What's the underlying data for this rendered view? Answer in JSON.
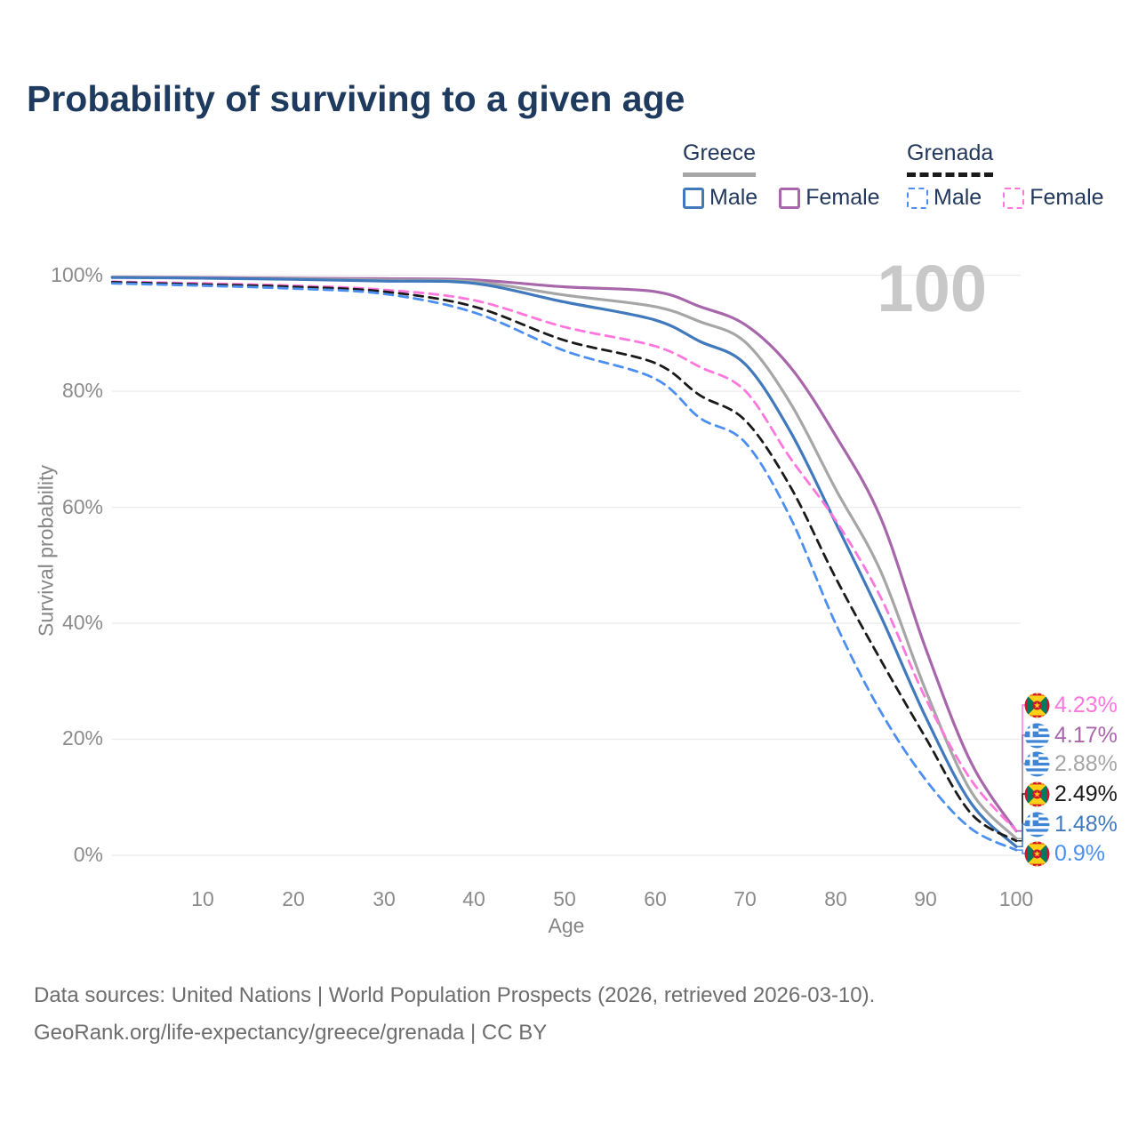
{
  "title": "Probability of surviving to a given age",
  "legend": {
    "groups": [
      {
        "label": "Greece",
        "line_style": "solid",
        "line_color": "#a6a6a6",
        "items": [
          {
            "label": "Male",
            "color": "#4179bd"
          },
          {
            "label": "Female",
            "color": "#a866ab"
          }
        ]
      },
      {
        "label": "Grenada",
        "line_style": "dashed",
        "line_color": "#1a1a1a",
        "items": [
          {
            "label": "Male",
            "color": "#4c8ff0"
          },
          {
            "label": "Female",
            "color": "#ff77dd"
          }
        ]
      }
    ]
  },
  "chart_data": {
    "type": "line",
    "title": "Probability of surviving to a given age",
    "xlabel": "Age",
    "ylabel": "Survival probability",
    "age_marker": "100",
    "xlim": [
      0,
      100.5
    ],
    "ylim": [
      0,
      100
    ],
    "grid": "horizontal",
    "legend_position": "top-right",
    "x_ticks": [
      "10",
      "20",
      "30",
      "40",
      "50",
      "60",
      "70",
      "80",
      "90",
      "100"
    ],
    "x_tick_values": [
      10,
      20,
      30,
      40,
      50,
      60,
      70,
      80,
      90,
      100
    ],
    "y_ticks": [
      "100%",
      "80%",
      "60%",
      "40%",
      "20%",
      "0%"
    ],
    "y_tick_values": [
      100,
      80,
      60,
      40,
      20,
      0
    ],
    "ages": [
      0,
      10,
      20,
      30,
      40,
      50,
      60,
      65,
      70,
      75,
      80,
      85,
      90,
      95,
      100
    ],
    "series": [
      {
        "name": "Grenada Female",
        "color": "#ff77dd",
        "dash": true,
        "flag": "grenada",
        "end_label": "4.23%",
        "values": [
          98.9,
          98.6,
          98.2,
          97.5,
          95.7,
          91.1,
          87.8,
          84.2,
          80.1,
          68.5,
          57.8,
          44.5,
          27.0,
          13.0,
          4.23
        ]
      },
      {
        "name": "Greece Female",
        "color": "#a866ab",
        "dash": false,
        "flag": "greece",
        "end_label": "4.17%",
        "values": [
          99.7,
          99.6,
          99.5,
          99.4,
          99.2,
          98.0,
          97.2,
          94.6,
          91.5,
          84.2,
          72.4,
          58.2,
          35.6,
          16.0,
          4.17
        ]
      },
      {
        "name": "Greece",
        "color": "#a6a6a6",
        "dash": false,
        "flag": "greece",
        "end_label": "2.88%",
        "values": [
          99.7,
          99.5,
          99.4,
          99.2,
          98.9,
          96.6,
          94.6,
          92.0,
          88.5,
          78.0,
          63.2,
          49.0,
          28.4,
          11.0,
          2.88
        ]
      },
      {
        "name": "Grenada",
        "color": "#1a1a1a",
        "dash": true,
        "flag": "grenada",
        "end_label": "2.49%",
        "values": [
          98.8,
          98.4,
          98.0,
          97.2,
          94.6,
          88.8,
          84.9,
          79.3,
          75.0,
          63.6,
          47.9,
          33.7,
          20.2,
          7.2,
          2.49
        ]
      },
      {
        "name": "Greece Male",
        "color": "#4179bd",
        "dash": false,
        "flag": "greece",
        "end_label": "1.48%",
        "values": [
          99.6,
          99.5,
          99.3,
          99.0,
          98.6,
          95.4,
          92.3,
          88.6,
          84.7,
          73.1,
          57.4,
          41.3,
          23.8,
          9.0,
          1.48
        ]
      },
      {
        "name": "Grenada Male",
        "color": "#4c8ff0",
        "dash": true,
        "flag": "grenada",
        "end_label": "0.9%",
        "values": [
          98.6,
          98.2,
          97.7,
          96.8,
          93.6,
          87.0,
          82.2,
          75.4,
          71.2,
          58.3,
          40.0,
          24.8,
          13.0,
          4.6,
          0.9
        ]
      }
    ]
  },
  "footer": {
    "line1": "Data sources: United Nations | World Population Prospects (2026, retrieved 2026-03-10).",
    "line2": "GeoRank.org/life-expectancy/greece/grenada | CC BY"
  }
}
